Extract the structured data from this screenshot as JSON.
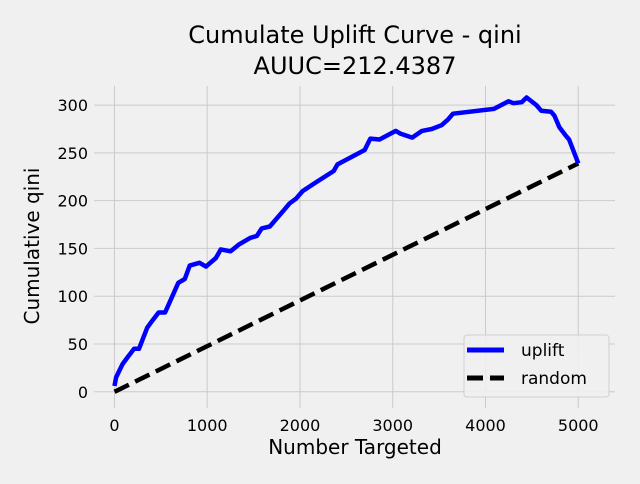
{
  "chart_data": {
    "type": "line",
    "title": "Cumulate Uplift Curve - qini",
    "subtitle": "AUUC=212.4387",
    "xlabel": "Number Targeted",
    "ylabel": "Cumulative qini",
    "xlim": [
      -350,
      5450
    ],
    "ylim": [
      -17,
      320
    ],
    "xticks": [
      0,
      1000,
      2000,
      3000,
      4000,
      5000
    ],
    "yticks": [
      0,
      50,
      100,
      150,
      200,
      250,
      300
    ],
    "grid": true,
    "legend_position": "lower-right",
    "series": [
      {
        "name": "uplift",
        "color": "#0000ff",
        "style": "solid",
        "points": [
          [
            0,
            6
          ],
          [
            18,
            15
          ],
          [
            88,
            29
          ],
          [
            141,
            36
          ],
          [
            212,
            45
          ],
          [
            264,
            45
          ],
          [
            353,
            67
          ],
          [
            405,
            74
          ],
          [
            476,
            83
          ],
          [
            546,
            83
          ],
          [
            688,
            114
          ],
          [
            758,
            118
          ],
          [
            811,
            132
          ],
          [
            917,
            135
          ],
          [
            987,
            131
          ],
          [
            1093,
            140
          ],
          [
            1146,
            149
          ],
          [
            1252,
            147
          ],
          [
            1340,
            154
          ],
          [
            1463,
            161
          ],
          [
            1534,
            163
          ],
          [
            1587,
            171
          ],
          [
            1675,
            173
          ],
          [
            1834,
            191
          ],
          [
            1887,
            197
          ],
          [
            1957,
            202
          ],
          [
            2028,
            210
          ],
          [
            2169,
            219
          ],
          [
            2363,
            231
          ],
          [
            2405,
            238
          ],
          [
            2698,
            253
          ],
          [
            2758,
            265
          ],
          [
            2857,
            264
          ],
          [
            3033,
            273
          ],
          [
            3086,
            270
          ],
          [
            3210,
            266
          ],
          [
            3315,
            273
          ],
          [
            3421,
            275
          ],
          [
            3527,
            279
          ],
          [
            3597,
            285
          ],
          [
            3650,
            291
          ],
          [
            4091,
            296
          ],
          [
            4249,
            304
          ],
          [
            4302,
            302
          ],
          [
            4390,
            303
          ],
          [
            4443,
            308
          ],
          [
            4549,
            300
          ],
          [
            4602,
            294
          ],
          [
            4707,
            293
          ],
          [
            4743,
            289
          ],
          [
            4796,
            277
          ],
          [
            4866,
            268
          ],
          [
            4901,
            264
          ],
          [
            5000,
            239
          ]
        ]
      },
      {
        "name": "random",
        "color": "#000000",
        "style": "dashed",
        "points": [
          [
            0,
            0
          ],
          [
            5000,
            239
          ]
        ]
      }
    ]
  }
}
